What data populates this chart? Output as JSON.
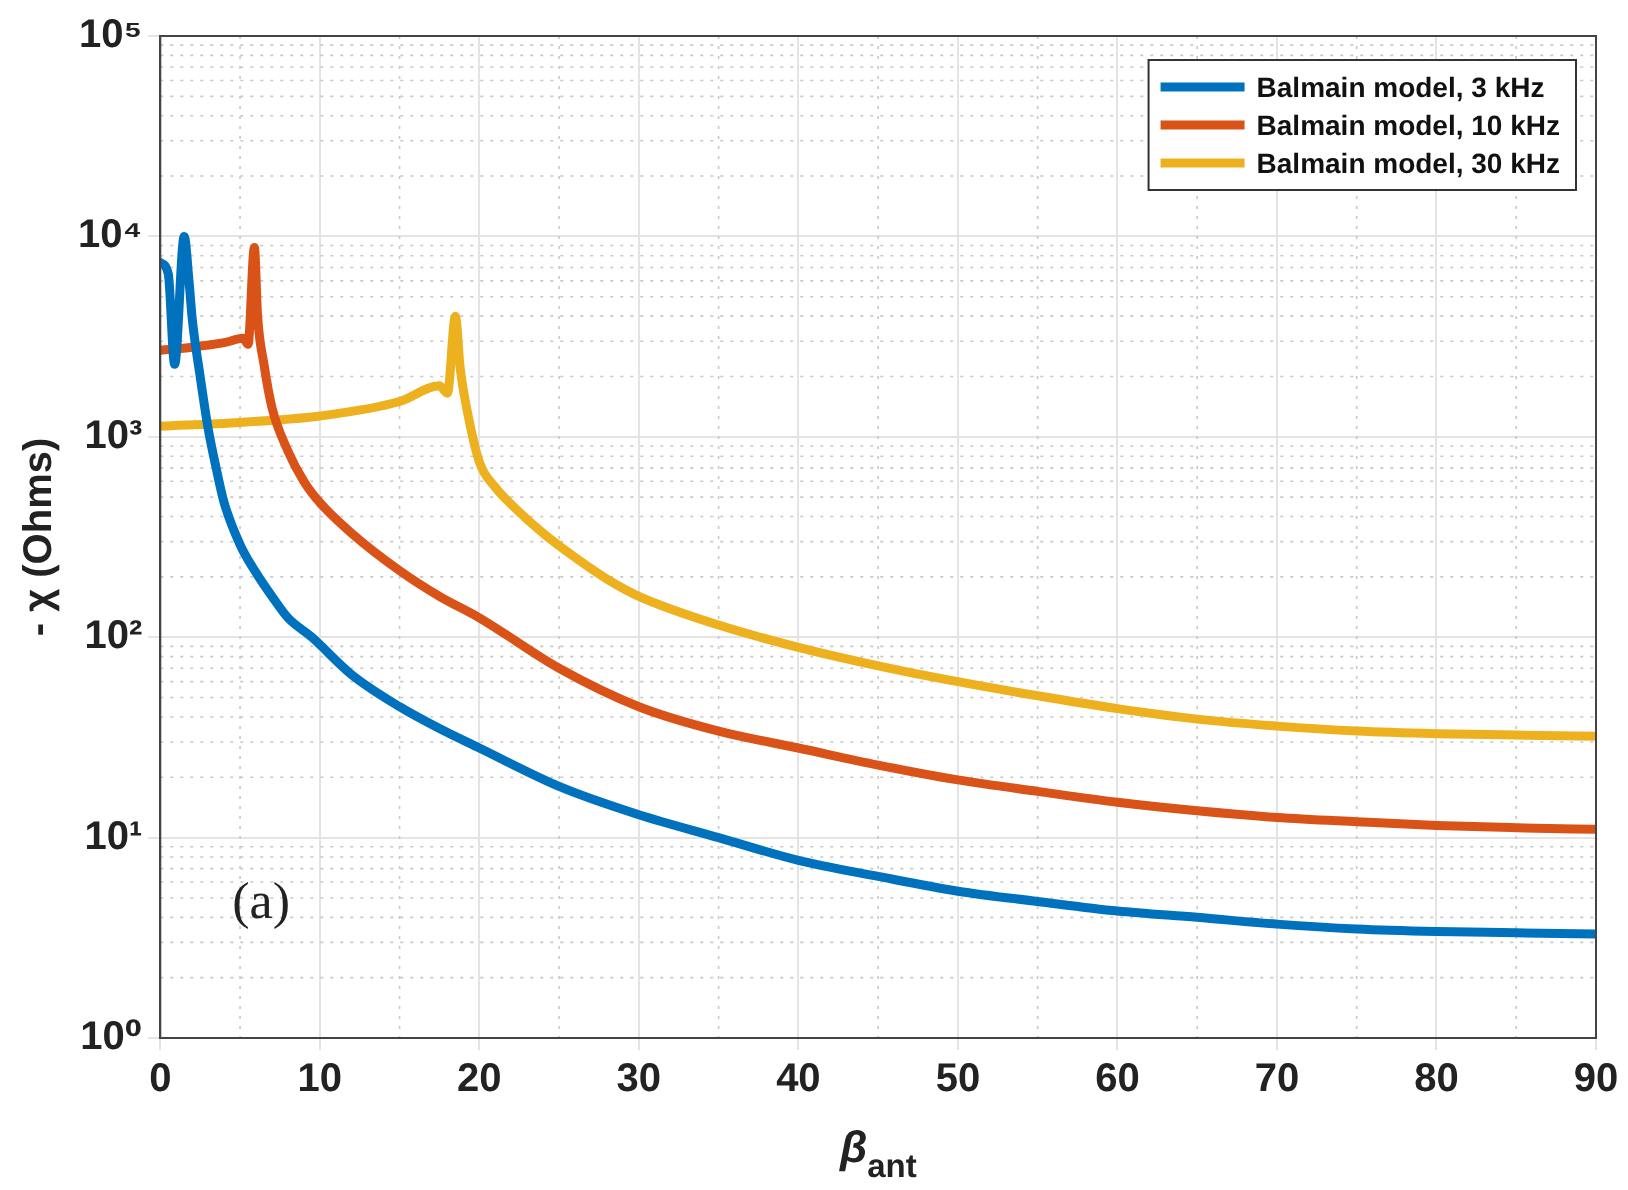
{
  "chart_data": {
    "type": "line",
    "xlabel": "β$_{ant}$",
    "ylabel": "- χ (Ohms)",
    "log": "y",
    "grid": true,
    "legend": "top right",
    "marker": "none",
    "line_style": "solid",
    "xlim": [
      0,
      90
    ],
    "xticks": [
      0,
      10,
      20,
      30,
      40,
      50,
      60,
      70,
      80,
      90
    ],
    "ylim": [
      1,
      100000
    ],
    "yticks": [
      {
        "value": 1,
        "label": "10⁰"
      },
      {
        "value": 10,
        "label": "10¹"
      },
      {
        "value": 100,
        "label": "10²"
      },
      {
        "value": 1000,
        "label": "10³"
      },
      {
        "value": 10000,
        "label": "10⁴"
      },
      {
        "value": 100000,
        "label": "10⁵"
      }
    ],
    "annotations": [
      "(a)"
    ],
    "series": [
      {
        "name": "Balmain model, 3 kHz",
        "color": "#0072bd",
        "x": [
          0,
          0.5,
          0.9,
          1.5,
          1.8,
          2,
          2.5,
          3,
          3.5,
          4,
          5,
          6,
          7,
          8,
          9.5,
          12,
          15,
          17.5,
          20,
          25,
          30,
          35,
          40,
          45,
          50,
          55,
          60,
          65,
          70,
          75,
          80,
          85,
          90
        ],
        "values": [
          7400,
          6500,
          2300,
          10000,
          6000,
          3900,
          2000,
          1100,
          700,
          470,
          290,
          210,
          160,
          125,
          100,
          65,
          45,
          35,
          28,
          18,
          13,
          10,
          7.7,
          6.4,
          5.4,
          4.8,
          4.3,
          4,
          3.7,
          3.5,
          3.4,
          3.35,
          3.3
        ]
      },
      {
        "name": "Balmain model, 10 kHz",
        "color": "#d95319",
        "x": [
          0,
          2,
          4,
          5.2,
          5.5,
          5.9,
          6.1,
          6.5,
          7,
          8,
          9,
          10,
          12,
          15,
          17.5,
          20,
          25,
          30,
          35,
          40,
          45,
          50,
          55,
          60,
          65,
          70,
          75,
          80,
          85,
          90
        ],
        "values": [
          2700,
          2800,
          2950,
          3100,
          2900,
          8800,
          4000,
          2300,
          1400,
          850,
          600,
          470,
          330,
          215,
          160,
          125,
          70,
          45,
          34,
          28,
          23,
          19.4,
          17,
          15,
          13.6,
          12.6,
          12,
          11.5,
          11.2,
          11
        ]
      },
      {
        "name": "Balmain model, 30 kHz",
        "color": "#edb120",
        "x": [
          0,
          5,
          10,
          15,
          17.5,
          18,
          18.5,
          18.8,
          19.2,
          20,
          21,
          22,
          24,
          26,
          28,
          30,
          35,
          40,
          45,
          50,
          55,
          60,
          65,
          70,
          75,
          80,
          85,
          90
        ],
        "values": [
          1130,
          1180,
          1270,
          1500,
          1800,
          1650,
          4000,
          2200,
          1400,
          750,
          560,
          460,
          330,
          250,
          195,
          160,
          115,
          89,
          72,
          60,
          51,
          44,
          39,
          36,
          34,
          33,
          32.5,
          32
        ]
      }
    ]
  }
}
